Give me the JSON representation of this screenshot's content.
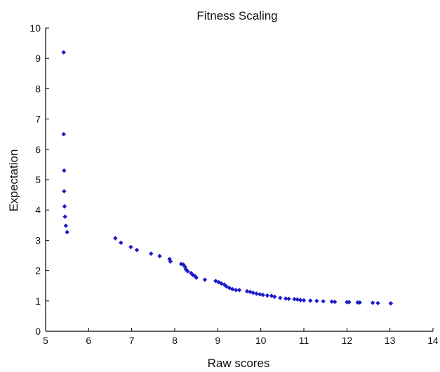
{
  "chart_data": {
    "type": "scatter",
    "title": "Fitness Scaling",
    "xlabel": "Raw scores",
    "ylabel": "Expectation",
    "xlim": [
      5,
      14
    ],
    "ylim": [
      0,
      10
    ],
    "xticks": [
      "5",
      "6",
      "7",
      "8",
      "9",
      "10",
      "11",
      "12",
      "13",
      "14"
    ],
    "yticks": [
      "0",
      "1",
      "2",
      "3",
      "4",
      "5",
      "6",
      "7",
      "8",
      "9",
      "10"
    ],
    "grid": false,
    "marker_color": "#1a1acc",
    "points": [
      [
        5.42,
        9.2
      ],
      [
        5.42,
        6.5
      ],
      [
        5.43,
        5.3
      ],
      [
        5.43,
        4.62
      ],
      [
        5.44,
        4.12
      ],
      [
        5.45,
        3.78
      ],
      [
        5.47,
        3.48
      ],
      [
        5.5,
        3.27
      ],
      [
        6.62,
        3.07
      ],
      [
        6.75,
        2.92
      ],
      [
        6.98,
        2.78
      ],
      [
        7.12,
        2.68
      ],
      [
        7.45,
        2.56
      ],
      [
        7.65,
        2.48
      ],
      [
        7.88,
        2.38
      ],
      [
        7.9,
        2.3
      ],
      [
        8.15,
        2.22
      ],
      [
        8.2,
        2.2
      ],
      [
        8.24,
        2.12
      ],
      [
        8.26,
        2.04
      ],
      [
        8.3,
        1.98
      ],
      [
        8.38,
        1.92
      ],
      [
        8.42,
        1.86
      ],
      [
        8.47,
        1.82
      ],
      [
        8.5,
        1.77
      ],
      [
        8.7,
        1.7
      ],
      [
        8.95,
        1.66
      ],
      [
        9.02,
        1.62
      ],
      [
        9.08,
        1.58
      ],
      [
        9.15,
        1.54
      ],
      [
        9.2,
        1.48
      ],
      [
        9.27,
        1.43
      ],
      [
        9.34,
        1.39
      ],
      [
        9.42,
        1.36
      ],
      [
        9.5,
        1.36
      ],
      [
        9.68,
        1.32
      ],
      [
        9.75,
        1.3
      ],
      [
        9.82,
        1.27
      ],
      [
        9.9,
        1.24
      ],
      [
        9.98,
        1.22
      ],
      [
        10.05,
        1.2
      ],
      [
        10.15,
        1.18
      ],
      [
        10.25,
        1.17
      ],
      [
        10.32,
        1.14
      ],
      [
        10.45,
        1.1
      ],
      [
        10.58,
        1.08
      ],
      [
        10.65,
        1.07
      ],
      [
        10.78,
        1.06
      ],
      [
        10.85,
        1.05
      ],
      [
        10.92,
        1.03
      ],
      [
        11.0,
        1.02
      ],
      [
        11.15,
        1.01
      ],
      [
        11.3,
        1.0
      ],
      [
        11.45,
        0.99
      ],
      [
        11.65,
        0.98
      ],
      [
        11.72,
        0.97
      ],
      [
        12.0,
        0.96
      ],
      [
        12.05,
        0.96
      ],
      [
        12.25,
        0.95
      ],
      [
        12.3,
        0.95
      ],
      [
        12.6,
        0.94
      ],
      [
        12.72,
        0.93
      ],
      [
        13.02,
        0.92
      ]
    ]
  }
}
